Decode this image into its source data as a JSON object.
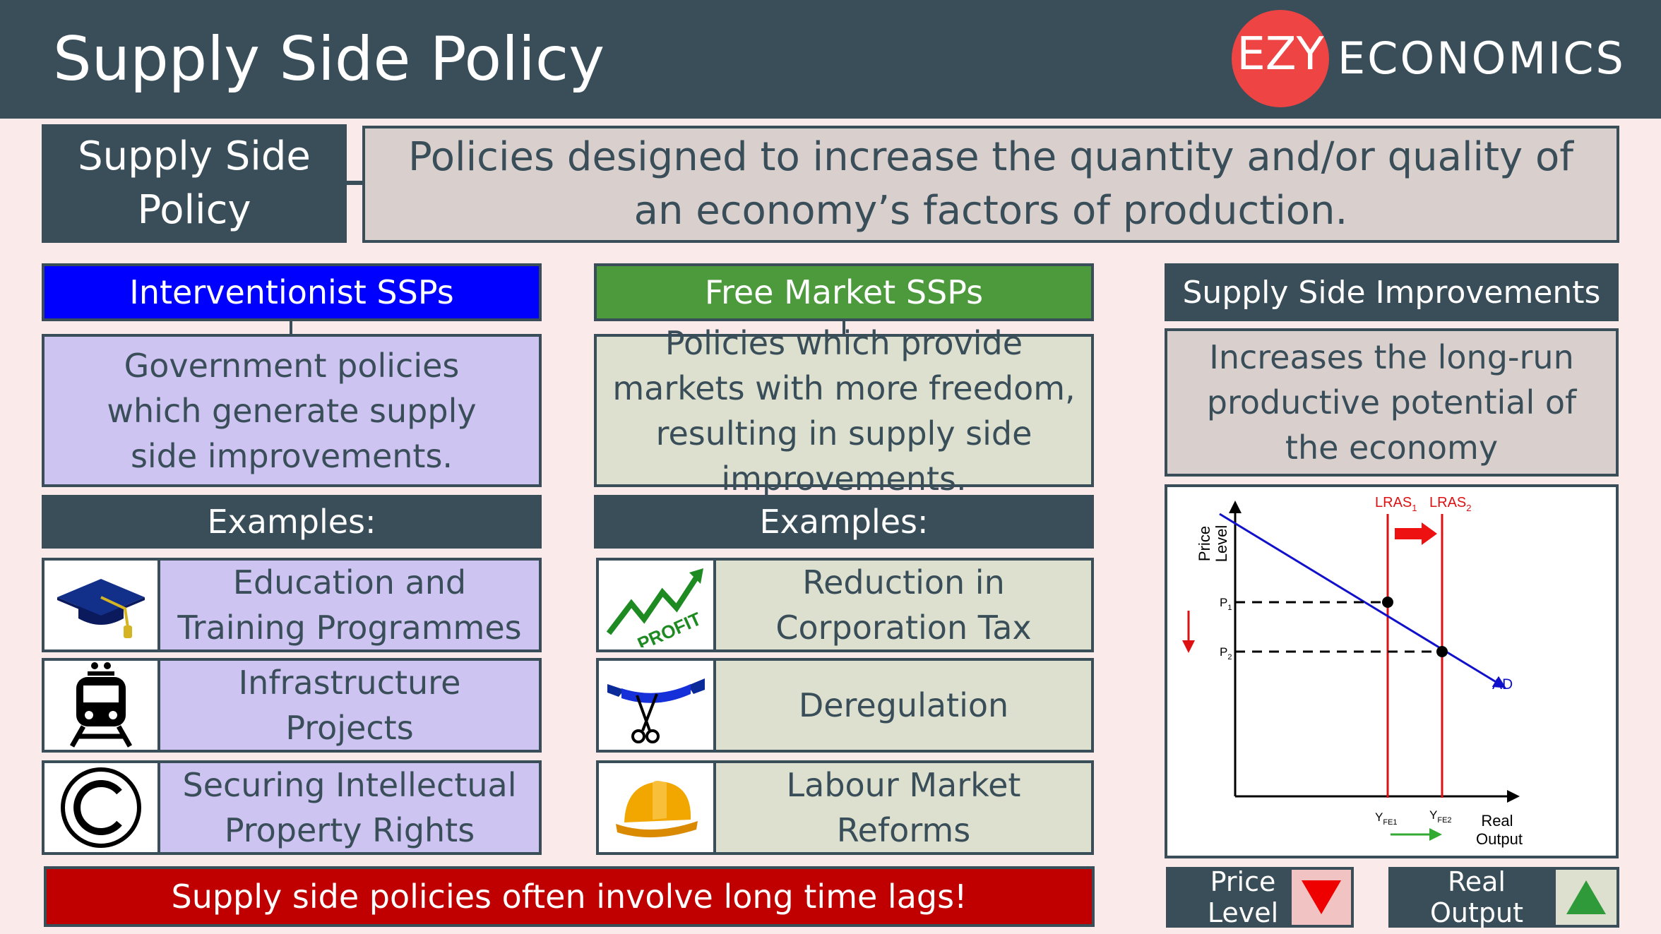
{
  "header": {
    "title": "Supply Side Policy",
    "logo_left": "EZY",
    "logo_right": "ECONOMICS"
  },
  "definition": {
    "term": "Supply Side Policy",
    "text": "Policies designed to increase the quantity and/or quality of an economy’s factors of production."
  },
  "interventionist": {
    "title": "Interventionist SSPs",
    "description": "Government policies which generate supply side improvements.",
    "examples_label": "Examples:",
    "examples": [
      {
        "label": "Education and Training Programmes",
        "icon": "graduation-cap-icon"
      },
      {
        "label": "Infrastructure Projects",
        "icon": "train-icon"
      },
      {
        "label": "Securing Intellectual Property Rights",
        "icon": "copyright-icon"
      }
    ]
  },
  "free_market": {
    "title": "Free Market SSPs",
    "description": "Policies which provide markets with more freedom, resulting in supply side improvements.",
    "examples_label": "Examples:",
    "examples": [
      {
        "label": "Reduction in Corporation Tax",
        "icon": "profit-chart-icon",
        "icon_text": "PROFIT"
      },
      {
        "label": "Deregulation",
        "icon": "ribbon-scissors-icon"
      },
      {
        "label": "Labour Market Reforms",
        "icon": "hard-hat-icon"
      }
    ]
  },
  "improvements": {
    "title": "Supply Side Improvements",
    "description": "Increases the long-run productive potential of the economy"
  },
  "chart_data": {
    "type": "line",
    "ylabel": "Price Level",
    "xlabel": "Real Output",
    "lras1_label": "LRAS",
    "lras1_sub": "1",
    "lras2_label": "LRAS",
    "lras2_sub": "2",
    "ad_label": "AD",
    "p1_label": "P",
    "p1_sub": "1",
    "p2_label": "P",
    "p2_sub": "2",
    "y1_label": "Y",
    "y1_sub": "FE1",
    "y2_label": "Y",
    "y2_sub": "FE2",
    "colors": {
      "lras": "#dd1111",
      "ad": "#1111cc",
      "arrow_right": "#ee1111",
      "arrow_down": "#dd1111",
      "arrow_output": "#33aa33"
    }
  },
  "outcomes": {
    "price_label": "Price Level",
    "price_direction": "down",
    "output_label": "Real Output",
    "output_direction": "up",
    "colors": {
      "down": "#ee0000",
      "up": "#2e9a3a"
    }
  },
  "footer": {
    "warning": "Supply side policies often involve long time lags!"
  },
  "colors": {
    "header": "#394e59",
    "interventionist": "#0000ff",
    "free_market": "#4c9a3c",
    "warning": "#c00000",
    "background": "#fbeaea"
  }
}
